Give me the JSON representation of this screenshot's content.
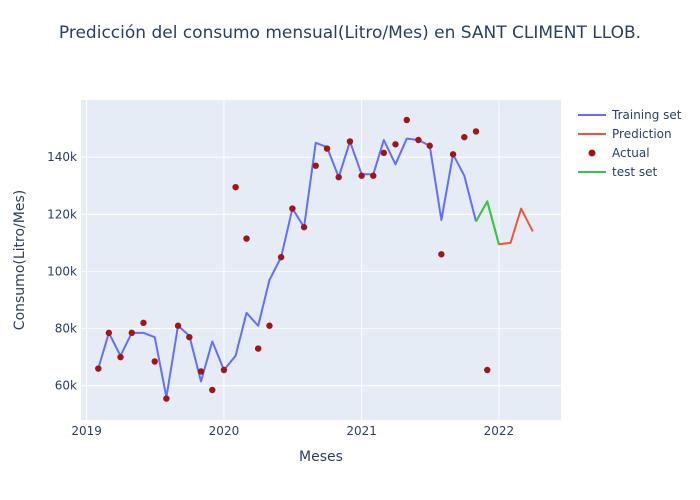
{
  "chart_data": {
    "type": "line",
    "title": "Predicción del consumo mensual(Litro/Mes) en SANT CLIMENT LLOB.",
    "xlabel": "Meses",
    "ylabel": "Consumo(Litro/Mes)",
    "xlim": [
      "2018-12-17",
      "2022-06-15"
    ],
    "ylim": [
      48000,
      160000
    ],
    "x_ticks": [
      {
        "date": "2019-01-01",
        "label": "2019"
      },
      {
        "date": "2020-01-01",
        "label": "2020"
      },
      {
        "date": "2021-01-01",
        "label": "2021"
      },
      {
        "date": "2022-01-01",
        "label": "2022"
      }
    ],
    "y_ticks": [
      {
        "value": 60000,
        "label": "60k"
      },
      {
        "value": 80000,
        "label": "80k"
      },
      {
        "value": 100000,
        "label": "100k"
      },
      {
        "value": 120000,
        "label": "120k"
      },
      {
        "value": 140000,
        "label": "140k"
      }
    ],
    "grid": true,
    "legend_position": "top-right",
    "colors": {
      "training": "#636efa",
      "prediction": "#ef553b",
      "actual": "#a31515",
      "test": "#2ecc40",
      "plot_bg": "#e5ecf6",
      "grid": "#ffffff",
      "text": "#2a3f5f"
    },
    "series": [
      {
        "name": "Training set",
        "mode": "lines",
        "color": "#636efa",
        "points": [
          [
            "2019-02-01",
            66000
          ],
          [
            "2019-03-01",
            78500
          ],
          [
            "2019-04-01",
            70500
          ],
          [
            "2019-05-01",
            78500
          ],
          [
            "2019-06-01",
            78500
          ],
          [
            "2019-07-01",
            77000
          ],
          [
            "2019-08-01",
            56000
          ],
          [
            "2019-09-01",
            81000
          ],
          [
            "2019-10-01",
            77500
          ],
          [
            "2019-11-01",
            61500
          ],
          [
            "2019-12-01",
            75500
          ],
          [
            "2020-01-01",
            65500
          ],
          [
            "2020-02-01",
            70500
          ],
          [
            "2020-03-01",
            85500
          ],
          [
            "2020-04-01",
            81000
          ],
          [
            "2020-05-01",
            97000
          ],
          [
            "2020-06-01",
            105000
          ],
          [
            "2020-07-01",
            122000
          ],
          [
            "2020-08-01",
            115500
          ],
          [
            "2020-09-01",
            145000
          ],
          [
            "2020-10-01",
            143500
          ],
          [
            "2020-11-01",
            133000
          ],
          [
            "2020-12-01",
            145500
          ],
          [
            "2021-01-01",
            134000
          ],
          [
            "2021-02-01",
            134000
          ],
          [
            "2021-03-01",
            146000
          ],
          [
            "2021-04-01",
            137500
          ],
          [
            "2021-05-01",
            146500
          ],
          [
            "2021-06-01",
            146000
          ],
          [
            "2021-07-01",
            144000
          ],
          [
            "2021-08-01",
            118000
          ],
          [
            "2021-09-01",
            141000
          ],
          [
            "2021-10-01",
            133500
          ],
          [
            "2021-11-01",
            117500
          ]
        ]
      },
      {
        "name": "Prediction",
        "mode": "lines",
        "color": "#ef553b",
        "points": [
          [
            "2021-11-01",
            117500
          ],
          [
            "2021-12-01",
            124500
          ],
          [
            "2022-01-01",
            109500
          ],
          [
            "2022-02-01",
            110000
          ],
          [
            "2022-03-01",
            122000
          ],
          [
            "2022-04-01",
            114000
          ]
        ]
      },
      {
        "name": "Actual",
        "mode": "markers",
        "color": "#a31515",
        "points": [
          [
            "2019-02-01",
            66000
          ],
          [
            "2019-03-01",
            78500
          ],
          [
            "2019-04-01",
            70000
          ],
          [
            "2019-05-01",
            78500
          ],
          [
            "2019-06-01",
            82000
          ],
          [
            "2019-07-01",
            68500
          ],
          [
            "2019-08-01",
            55500
          ],
          [
            "2019-09-01",
            81000
          ],
          [
            "2019-10-01",
            77000
          ],
          [
            "2019-11-01",
            65000
          ],
          [
            "2019-12-01",
            58500
          ],
          [
            "2020-01-01",
            65500
          ],
          [
            "2020-02-01",
            129500
          ],
          [
            "2020-03-01",
            111500
          ],
          [
            "2020-04-01",
            73000
          ],
          [
            "2020-05-01",
            81000
          ],
          [
            "2020-06-01",
            105000
          ],
          [
            "2020-07-01",
            122000
          ],
          [
            "2020-08-01",
            115500
          ],
          [
            "2020-09-01",
            137000
          ],
          [
            "2020-10-01",
            143000
          ],
          [
            "2020-11-01",
            133000
          ],
          [
            "2020-12-01",
            145500
          ],
          [
            "2021-01-01",
            133500
          ],
          [
            "2021-02-01",
            133500
          ],
          [
            "2021-03-01",
            141500
          ],
          [
            "2021-04-01",
            144500
          ],
          [
            "2021-05-01",
            153000
          ],
          [
            "2021-06-01",
            146000
          ],
          [
            "2021-07-01",
            144000
          ],
          [
            "2021-08-01",
            106000
          ],
          [
            "2021-09-01",
            141000
          ],
          [
            "2021-10-01",
            147000
          ],
          [
            "2021-11-01",
            149000
          ],
          [
            "2021-12-01",
            65500
          ]
        ]
      },
      {
        "name": "test set",
        "mode": "lines",
        "color": "#2ecc40",
        "points": [
          [
            "2021-11-01",
            117500
          ],
          [
            "2021-12-01",
            124500
          ],
          [
            "2022-01-01",
            109500
          ]
        ]
      }
    ]
  }
}
